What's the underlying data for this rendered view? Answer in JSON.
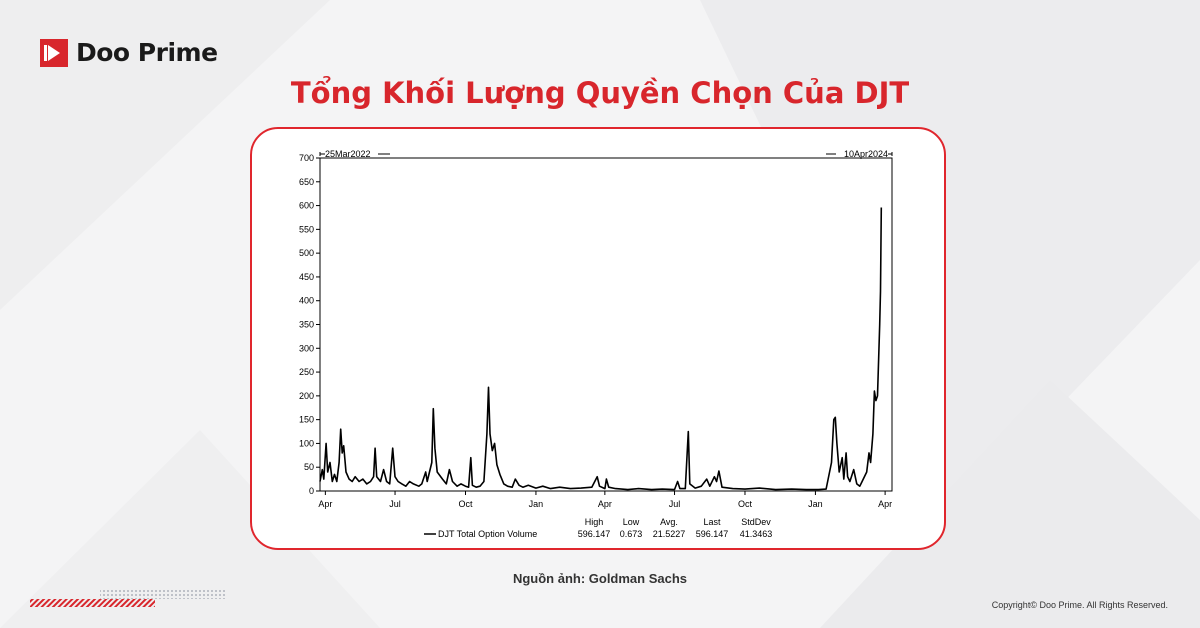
{
  "brand": {
    "name": "Doo Prime",
    "color": "#d8262c"
  },
  "title": "Tổng Khối Lượng Quyền Chọn Của DJT",
  "source": "Nguồn ảnh: Goldman Sachs",
  "copyright": "Copyright© Doo Prime. All Rights Reserved.",
  "chart_data": {
    "type": "line",
    "title": "",
    "xlabel": "",
    "ylabel": "",
    "start_label": "25Mar2022",
    "end_label": "10Apr2024",
    "ylim": [
      0,
      700
    ],
    "yticks": [
      0,
      50,
      100,
      150,
      200,
      250,
      300,
      350,
      400,
      450,
      500,
      550,
      600,
      650,
      700
    ],
    "xticks": [
      {
        "label": "Apr",
        "date": "2022-04-01"
      },
      {
        "label": "Jul",
        "date": "2022-07-01"
      },
      {
        "label": "Oct",
        "date": "2022-10-01"
      },
      {
        "label": "Jan",
        "date": "2023-01-01"
      },
      {
        "label": "Apr",
        "date": "2023-04-01"
      },
      {
        "label": "Jul",
        "date": "2023-07-01"
      },
      {
        "label": "Oct",
        "date": "2023-10-01"
      },
      {
        "label": "Jan",
        "date": "2024-01-01"
      },
      {
        "label": "Apr",
        "date": "2024-04-01"
      }
    ],
    "x_start": "2022-03-25",
    "x_end": "2024-04-10",
    "grid": false,
    "series": [
      {
        "name": "DJT Total Option Volume",
        "color": "#000000",
        "points": [
          [
            "2022-03-25",
            20
          ],
          [
            "2022-03-28",
            45
          ],
          [
            "2022-03-30",
            25
          ],
          [
            "2022-04-02",
            100
          ],
          [
            "2022-04-04",
            40
          ],
          [
            "2022-04-07",
            60
          ],
          [
            "2022-04-10",
            20
          ],
          [
            "2022-04-13",
            35
          ],
          [
            "2022-04-16",
            20
          ],
          [
            "2022-04-19",
            60
          ],
          [
            "2022-04-21",
            130
          ],
          [
            "2022-04-23",
            80
          ],
          [
            "2022-04-25",
            95
          ],
          [
            "2022-04-28",
            40
          ],
          [
            "2022-05-02",
            25
          ],
          [
            "2022-05-06",
            20
          ],
          [
            "2022-05-10",
            30
          ],
          [
            "2022-05-15",
            20
          ],
          [
            "2022-05-20",
            25
          ],
          [
            "2022-05-25",
            15
          ],
          [
            "2022-05-30",
            20
          ],
          [
            "2022-06-03",
            30
          ],
          [
            "2022-06-05",
            90
          ],
          [
            "2022-06-07",
            30
          ],
          [
            "2022-06-12",
            20
          ],
          [
            "2022-06-16",
            45
          ],
          [
            "2022-06-20",
            20
          ],
          [
            "2022-06-24",
            15
          ],
          [
            "2022-06-28",
            90
          ],
          [
            "2022-07-01",
            30
          ],
          [
            "2022-07-05",
            20
          ],
          [
            "2022-07-10",
            15
          ],
          [
            "2022-07-15",
            10
          ],
          [
            "2022-07-20",
            20
          ],
          [
            "2022-07-25",
            15
          ],
          [
            "2022-08-01",
            10
          ],
          [
            "2022-08-05",
            15
          ],
          [
            "2022-08-10",
            40
          ],
          [
            "2022-08-12",
            20
          ],
          [
            "2022-08-18",
            60
          ],
          [
            "2022-08-20",
            173
          ],
          [
            "2022-08-22",
            90
          ],
          [
            "2022-08-25",
            40
          ],
          [
            "2022-09-01",
            25
          ],
          [
            "2022-09-06",
            15
          ],
          [
            "2022-09-10",
            45
          ],
          [
            "2022-09-14",
            20
          ],
          [
            "2022-09-20",
            10
          ],
          [
            "2022-09-25",
            15
          ],
          [
            "2022-10-01",
            10
          ],
          [
            "2022-10-05",
            8
          ],
          [
            "2022-10-08",
            70
          ],
          [
            "2022-10-10",
            12
          ],
          [
            "2022-10-15",
            8
          ],
          [
            "2022-10-20",
            10
          ],
          [
            "2022-10-25",
            20
          ],
          [
            "2022-10-29",
            120
          ],
          [
            "2022-10-31",
            218
          ],
          [
            "2022-11-02",
            120
          ],
          [
            "2022-11-05",
            85
          ],
          [
            "2022-11-08",
            100
          ],
          [
            "2022-11-11",
            55
          ],
          [
            "2022-11-15",
            35
          ],
          [
            "2022-11-20",
            15
          ],
          [
            "2022-11-25",
            10
          ],
          [
            "2022-12-01",
            8
          ],
          [
            "2022-12-05",
            25
          ],
          [
            "2022-12-10",
            12
          ],
          [
            "2022-12-15",
            8
          ],
          [
            "2022-12-22",
            12
          ],
          [
            "2023-01-01",
            6
          ],
          [
            "2023-01-10",
            10
          ],
          [
            "2023-01-20",
            5
          ],
          [
            "2023-02-01",
            8
          ],
          [
            "2023-02-15",
            5
          ],
          [
            "2023-03-01",
            6
          ],
          [
            "2023-03-15",
            8
          ],
          [
            "2023-03-22",
            30
          ],
          [
            "2023-03-25",
            10
          ],
          [
            "2023-04-01",
            5
          ],
          [
            "2023-04-03",
            25
          ],
          [
            "2023-04-06",
            8
          ],
          [
            "2023-04-15",
            5
          ],
          [
            "2023-05-01",
            3
          ],
          [
            "2023-05-15",
            5
          ],
          [
            "2023-06-01",
            3
          ],
          [
            "2023-06-15",
            4
          ],
          [
            "2023-07-01",
            3
          ],
          [
            "2023-07-05",
            20
          ],
          [
            "2023-07-08",
            5
          ],
          [
            "2023-07-15",
            5
          ],
          [
            "2023-07-19",
            125
          ],
          [
            "2023-07-21",
            15
          ],
          [
            "2023-07-28",
            6
          ],
          [
            "2023-08-05",
            10
          ],
          [
            "2023-08-12",
            25
          ],
          [
            "2023-08-16",
            10
          ],
          [
            "2023-08-22",
            30
          ],
          [
            "2023-08-25",
            20
          ],
          [
            "2023-08-28",
            42
          ],
          [
            "2023-09-01",
            8
          ],
          [
            "2023-09-15",
            5
          ],
          [
            "2023-10-01",
            4
          ],
          [
            "2023-10-20",
            6
          ],
          [
            "2023-11-10",
            3
          ],
          [
            "2023-12-01",
            4
          ],
          [
            "2023-12-20",
            3
          ],
          [
            "2024-01-05",
            3
          ],
          [
            "2024-01-15",
            4
          ],
          [
            "2024-01-22",
            60
          ],
          [
            "2024-01-25",
            150
          ],
          [
            "2024-01-27",
            155
          ],
          [
            "2024-01-29",
            100
          ],
          [
            "2024-02-01",
            40
          ],
          [
            "2024-02-05",
            70
          ],
          [
            "2024-02-07",
            25
          ],
          [
            "2024-02-10",
            80
          ],
          [
            "2024-02-12",
            30
          ],
          [
            "2024-02-15",
            20
          ],
          [
            "2024-02-20",
            45
          ],
          [
            "2024-02-24",
            15
          ],
          [
            "2024-02-28",
            10
          ],
          [
            "2024-03-02",
            20
          ],
          [
            "2024-03-08",
            40
          ],
          [
            "2024-03-11",
            80
          ],
          [
            "2024-03-13",
            60
          ],
          [
            "2024-03-16",
            120
          ],
          [
            "2024-03-18",
            210
          ],
          [
            "2024-03-20",
            190
          ],
          [
            "2024-03-22",
            200
          ],
          [
            "2024-03-25",
            350
          ],
          [
            "2024-03-26",
            420
          ],
          [
            "2024-03-27",
            596
          ]
        ]
      }
    ],
    "stats": {
      "headers": [
        "High",
        "Low",
        "Avg.",
        "Last",
        "StdDev"
      ],
      "values": [
        "596.147",
        "0.673",
        "21.5227",
        "596.147",
        "41.3463"
      ]
    }
  }
}
